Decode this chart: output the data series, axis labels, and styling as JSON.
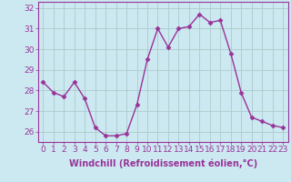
{
  "x": [
    0,
    1,
    2,
    3,
    4,
    5,
    6,
    7,
    8,
    9,
    10,
    11,
    12,
    13,
    14,
    15,
    16,
    17,
    18,
    19,
    20,
    21,
    22,
    23
  ],
  "y": [
    28.4,
    27.9,
    27.7,
    28.4,
    27.6,
    26.2,
    25.8,
    25.8,
    25.9,
    27.3,
    29.5,
    31.0,
    30.1,
    31.0,
    31.1,
    31.7,
    31.3,
    31.4,
    29.8,
    27.9,
    26.7,
    26.5,
    26.3,
    26.2
  ],
  "line_color": "#993399",
  "marker": "D",
  "marker_size": 2.5,
  "bg_color": "#cce8f0",
  "grid_color": "#aacccc",
  "xlabel": "Windchill (Refroidissement éolien,°C)",
  "ylim": [
    25.5,
    32.3
  ],
  "xlim": [
    -0.5,
    23.5
  ],
  "yticks": [
    26,
    27,
    28,
    29,
    30,
    31,
    32
  ],
  "xticks": [
    0,
    1,
    2,
    3,
    4,
    5,
    6,
    7,
    8,
    9,
    10,
    11,
    12,
    13,
    14,
    15,
    16,
    17,
    18,
    19,
    20,
    21,
    22,
    23
  ],
  "xtick_labels": [
    "0",
    "1",
    "2",
    "3",
    "4",
    "5",
    "6",
    "7",
    "8",
    "9",
    "10",
    "11",
    "12",
    "13",
    "14",
    "15",
    "16",
    "17",
    "18",
    "19",
    "20",
    "21",
    "22",
    "23"
  ],
  "tick_fontsize": 6.5,
  "xlabel_fontsize": 7,
  "line_width": 1.0
}
